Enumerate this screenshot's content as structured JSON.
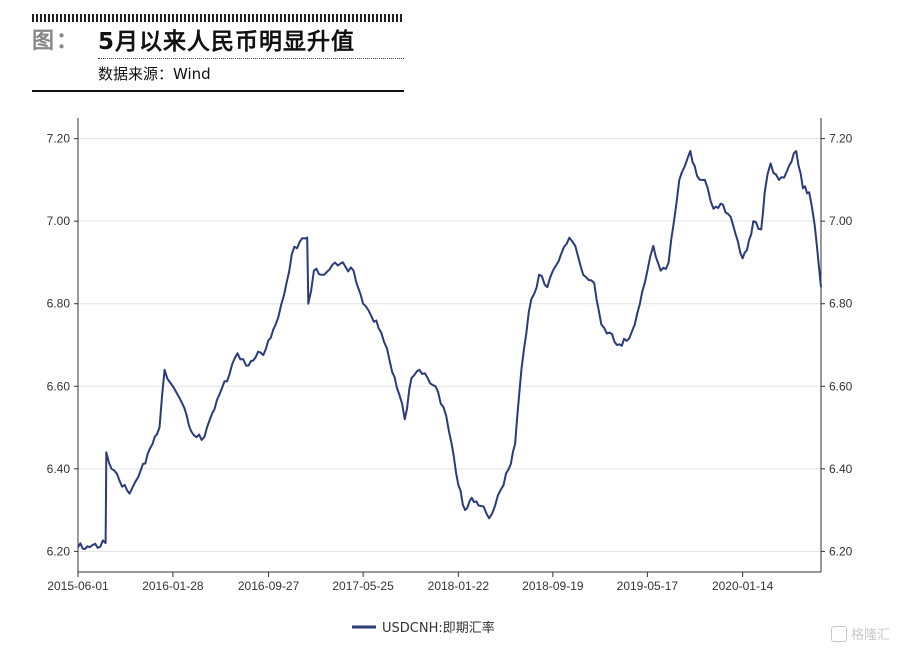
{
  "header": {
    "figure_label": "图：",
    "title": "5月以来人民币明显升值",
    "source": "数据来源：Wind"
  },
  "watermark": {
    "text": "格隆汇",
    "icon": "brand-logo-icon"
  },
  "colors": {
    "series": "#2b3b7a",
    "grid": "#e3e3e3",
    "axis": "#333333",
    "text": "#333333"
  },
  "chart_data": {
    "type": "line",
    "title": "",
    "xlabel": "",
    "ylabel": "",
    "ylim": [
      6.15,
      7.25
    ],
    "yticks": [
      "6.20",
      "6.40",
      "6.60",
      "6.80",
      "7.00",
      "7.20"
    ],
    "yticks_right": [
      "6.20",
      "6.40",
      "6.60",
      "6.80",
      "7.00",
      "7.20"
    ],
    "xticks": [
      "2015-06-01",
      "2016-01-28",
      "2016-09-27",
      "2017-05-25",
      "2018-01-22",
      "2018-09-19",
      "2019-05-17",
      "2020-01-14"
    ],
    "xlim": [
      "2015-06-01",
      "2020-07-31"
    ],
    "grid": true,
    "legend_position": "bottom-center",
    "series": [
      {
        "name": "USDCNH:即期汇率",
        "x": [
          "2015-06-01",
          "2015-07-01",
          "2015-08-10",
          "2015-08-12",
          "2015-08-25",
          "2015-09-15",
          "2015-10-10",
          "2015-11-01",
          "2015-12-01",
          "2015-12-25",
          "2016-01-07",
          "2016-01-28",
          "2016-02-20",
          "2016-03-15",
          "2016-04-10",
          "2016-05-01",
          "2016-05-25",
          "2016-06-20",
          "2016-07-10",
          "2016-08-01",
          "2016-08-25",
          "2016-09-20",
          "2016-10-15",
          "2016-11-05",
          "2016-11-25",
          "2016-12-15",
          "2017-01-03",
          "2017-01-06",
          "2017-01-20",
          "2017-02-15",
          "2017-03-15",
          "2017-04-10",
          "2017-05-01",
          "2017-05-25",
          "2017-06-15",
          "2017-07-10",
          "2017-08-01",
          "2017-08-25",
          "2017-09-08",
          "2017-09-25",
          "2017-10-15",
          "2017-11-05",
          "2017-11-25",
          "2017-12-15",
          "2018-01-05",
          "2018-01-22",
          "2018-02-08",
          "2018-02-25",
          "2018-03-20",
          "2018-04-10",
          "2018-04-25",
          "2018-05-10",
          "2018-05-30",
          "2018-06-15",
          "2018-07-01",
          "2018-07-20",
          "2018-08-15",
          "2018-09-05",
          "2018-09-19",
          "2018-10-10",
          "2018-10-31",
          "2018-11-15",
          "2018-12-05",
          "2019-01-02",
          "2019-01-20",
          "2019-02-10",
          "2019-03-01",
          "2019-03-25",
          "2019-04-15",
          "2019-05-17",
          "2019-06-01",
          "2019-06-20",
          "2019-07-10",
          "2019-08-06",
          "2019-09-03",
          "2019-09-20",
          "2019-10-10",
          "2019-11-01",
          "2019-11-25",
          "2019-12-15",
          "2020-01-14",
          "2020-01-25",
          "2020-02-10",
          "2020-03-01",
          "2020-03-10",
          "2020-03-25",
          "2020-04-15",
          "2020-05-05",
          "2020-05-29",
          "2020-06-15",
          "2020-07-01",
          "2020-07-15",
          "2020-07-31"
        ],
        "values": [
          6.21,
          6.21,
          6.22,
          6.44,
          6.4,
          6.37,
          6.34,
          6.38,
          6.45,
          6.5,
          6.64,
          6.6,
          6.56,
          6.49,
          6.47,
          6.52,
          6.58,
          6.63,
          6.68,
          6.65,
          6.67,
          6.69,
          6.75,
          6.82,
          6.92,
          6.95,
          6.96,
          6.8,
          6.88,
          6.87,
          6.9,
          6.89,
          6.88,
          6.8,
          6.77,
          6.73,
          6.66,
          6.58,
          6.52,
          6.62,
          6.64,
          6.62,
          6.6,
          6.55,
          6.46,
          6.36,
          6.3,
          6.33,
          6.31,
          6.28,
          6.31,
          6.35,
          6.4,
          6.46,
          6.64,
          6.78,
          6.87,
          6.84,
          6.88,
          6.92,
          6.96,
          6.94,
          6.87,
          6.85,
          6.75,
          6.73,
          6.7,
          6.71,
          6.75,
          6.88,
          6.94,
          6.88,
          6.9,
          7.1,
          7.17,
          7.11,
          7.1,
          7.03,
          7.04,
          7.01,
          6.91,
          6.93,
          7.0,
          6.98,
          7.07,
          7.14,
          7.1,
          7.12,
          7.17,
          7.08,
          7.07,
          6.99,
          6.84
        ]
      }
    ]
  }
}
